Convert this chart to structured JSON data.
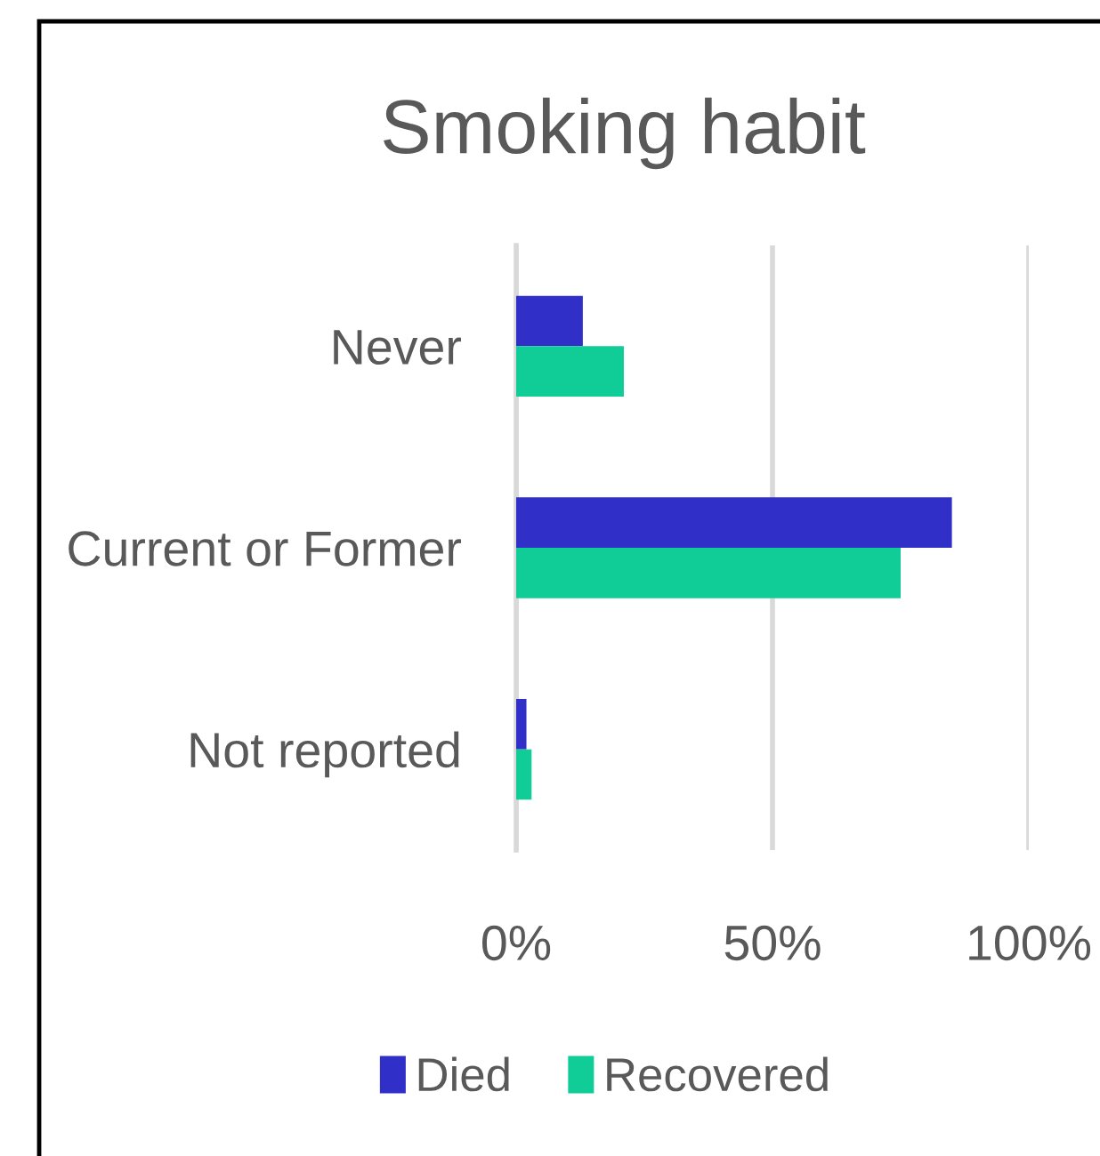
{
  "chart_data": {
    "type": "bar",
    "orientation": "horizontal",
    "title": "Smoking habit",
    "categories": [
      "Never",
      "Current or Former",
      "Not reported"
    ],
    "series": [
      {
        "name": "Died",
        "color": "#3030c8",
        "values": [
          13,
          85,
          2
        ]
      },
      {
        "name": "Recovered",
        "color": "#10cc96",
        "values": [
          21,
          75,
          3
        ]
      }
    ],
    "xlim": [
      0,
      100
    ],
    "xticks": [
      {
        "value": 0,
        "label": "0%"
      },
      {
        "value": 50,
        "label": "50%"
      },
      {
        "value": 100,
        "label": "100%"
      }
    ],
    "grid": "x",
    "legend": "bottom"
  }
}
